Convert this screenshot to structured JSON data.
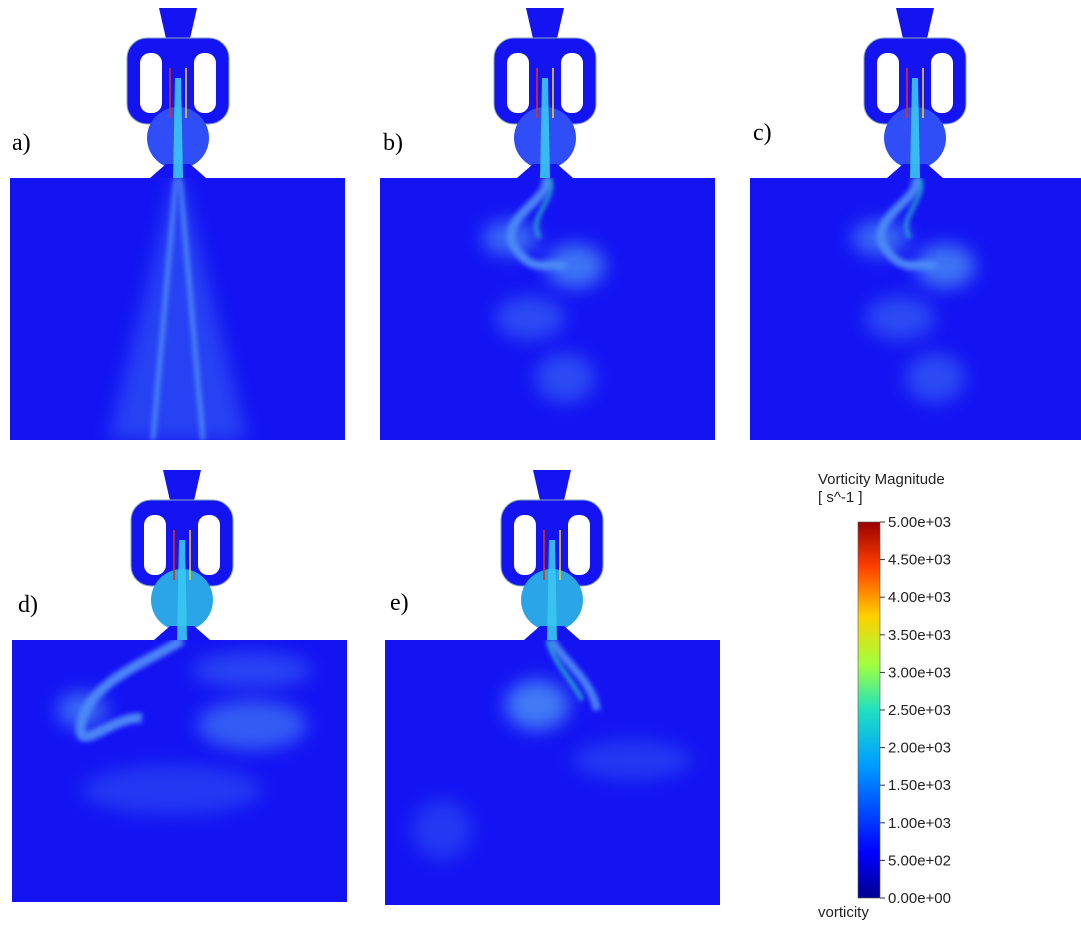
{
  "panels": [
    {
      "label": "a)"
    },
    {
      "label": "b)"
    },
    {
      "label": "c)"
    },
    {
      "label": "d)"
    },
    {
      "label": "e)"
    }
  ],
  "colorbar": {
    "title": "Vorticity Magnitude",
    "unit": "[ s^-1 ]",
    "caption": "vorticity",
    "range": [
      0,
      5000
    ],
    "ticks": [
      {
        "value": 5000,
        "label": "5.00e+03"
      },
      {
        "value": 4500,
        "label": "4.50e+03"
      },
      {
        "value": 4000,
        "label": "4.00e+03"
      },
      {
        "value": 3500,
        "label": "3.50e+03"
      },
      {
        "value": 3000,
        "label": "3.00e+03"
      },
      {
        "value": 2500,
        "label": "2.50e+03"
      },
      {
        "value": 2000,
        "label": "2.00e+03"
      },
      {
        "value": 1500,
        "label": "1.50e+03"
      },
      {
        "value": 1000,
        "label": "1.00e+03"
      },
      {
        "value": 500,
        "label": "5.00e+02"
      },
      {
        "value": 0,
        "label": "0.00e+00"
      }
    ]
  }
}
